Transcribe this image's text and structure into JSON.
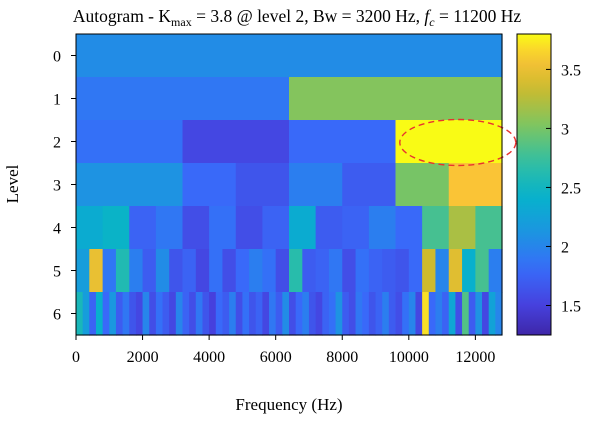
{
  "chart_data": {
    "type": "heatmap",
    "title": {
      "prefix": "Autogram - K",
      "sub": "max",
      "middle": " = 3.8 @ level 2, Bw = 3200 Hz, ",
      "f_italic": "f",
      "f_sub": "c",
      "suffix": " = 11200 Hz"
    },
    "xlabel": "Frequency (Hz)",
    "ylabel": "Level",
    "xlim": [
      0,
      12800
    ],
    "x_ticks": [
      0,
      2000,
      4000,
      6000,
      8000,
      10000,
      12000
    ],
    "y_ticks": [
      0,
      1,
      2,
      3,
      4,
      5,
      6
    ],
    "colorbar": {
      "range": [
        1.25,
        3.8
      ],
      "ticks": [
        1.5,
        2,
        2.5,
        3,
        3.5
      ],
      "tick_labels": [
        "1.5",
        "2",
        "2.5",
        "3",
        "3.5"
      ],
      "colormap": "parula"
    },
    "levels": [
      {
        "level": 0,
        "values": [
          2.05
        ]
      },
      {
        "level": 1,
        "values": [
          1.9,
          3.05
        ]
      },
      {
        "level": 2,
        "values": [
          1.85,
          1.55,
          1.8,
          3.8
        ]
      },
      {
        "level": 3,
        "values": [
          2.1,
          2.1,
          1.8,
          1.65,
          1.95,
          1.7,
          3.0,
          3.6
        ]
      },
      {
        "level": 4,
        "values": [
          2.35,
          2.45,
          1.75,
          1.9,
          1.6,
          1.85,
          1.6,
          1.75,
          2.35,
          1.7,
          1.75,
          1.95,
          1.8,
          2.8,
          3.2,
          2.8
        ]
      },
      {
        "level": 5,
        "values": [
          2.2,
          3.5,
          1.9,
          2.6,
          1.95,
          1.7,
          2.05,
          1.65,
          1.75,
          1.55,
          1.85,
          1.6,
          1.8,
          1.95,
          1.85,
          1.6,
          2.65,
          1.7,
          1.75,
          1.9,
          1.6,
          1.85,
          1.75,
          1.7,
          1.65,
          1.8,
          3.35,
          2.0,
          3.45,
          2.4,
          2.8,
          1.95
        ]
      },
      {
        "level": 6,
        "values": [
          2.55,
          2.2,
          1.75,
          2.4,
          1.8,
          2.15,
          1.7,
          1.9,
          1.65,
          1.55,
          2.0,
          1.6,
          1.85,
          1.7,
          1.55,
          2.0,
          1.75,
          1.6,
          1.9,
          1.65,
          1.5,
          1.8,
          1.7,
          1.95,
          1.6,
          1.85,
          1.65,
          1.75,
          1.55,
          1.9,
          1.7,
          2.05,
          1.6,
          1.8,
          1.95,
          1.65,
          1.55,
          1.75,
          1.85,
          2.1,
          1.7,
          1.6,
          1.9,
          1.8,
          1.65,
          1.75,
          1.95,
          1.7,
          1.6,
          1.85,
          2.0,
          1.55,
          3.7,
          1.8,
          1.95,
          1.75,
          2.3,
          1.6,
          2.85,
          1.7,
          2.1,
          1.55,
          2.25,
          2.0
        ]
      }
    ],
    "highlight": {
      "type": "dashed-ellipse",
      "color": "#e8332e",
      "center": {
        "x": 11200,
        "level": 2
      }
    }
  }
}
